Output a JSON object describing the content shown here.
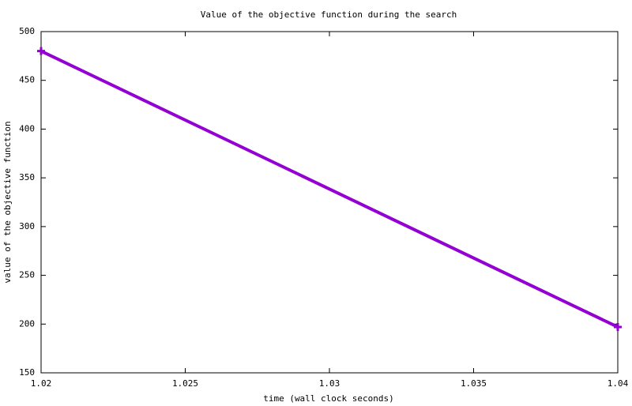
{
  "chart_data": {
    "type": "line",
    "title": "Value of the objective function during the search",
    "x_label": "time (wall clock seconds)",
    "y_label": "value of the objective function",
    "x": [
      1.02,
      1.04
    ],
    "values": [
      480,
      197
    ],
    "color": "#9400d3",
    "marker": "plus",
    "xlim": [
      1.02,
      1.04
    ],
    "xticks": [
      1.02,
      1.025,
      1.03,
      1.035,
      1.04
    ],
    "ylim": [
      150,
      500
    ],
    "yticks": [
      150,
      200,
      250,
      300,
      350,
      400,
      450,
      500
    ],
    "grid": false
  }
}
